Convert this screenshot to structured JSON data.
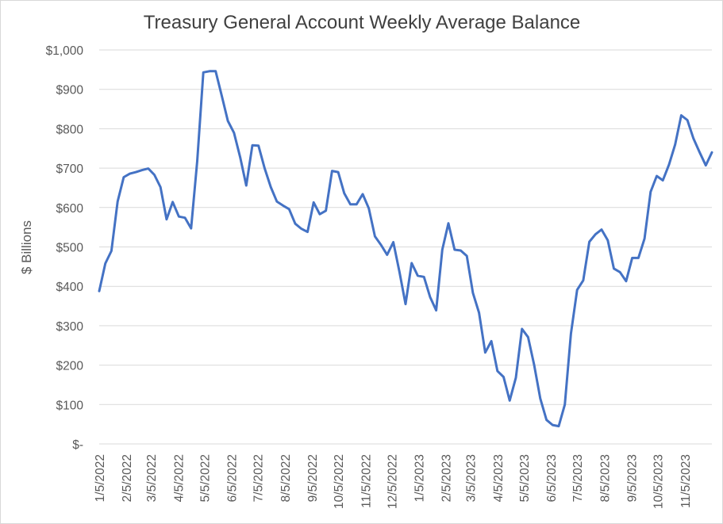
{
  "chart_data": {
    "type": "line",
    "title": "Treasury General Account Weekly Average Balance",
    "ylabel": "$ Billions",
    "xlabel": "",
    "ylim": [
      0,
      1000
    ],
    "grid": true,
    "ytick_labels": [
      "$-",
      "$100",
      "$200",
      "$300",
      "$400",
      "$500",
      "$600",
      "$700",
      "$800",
      "$900",
      "$1,000"
    ],
    "xtick_labels": [
      "1/5/2022",
      "2/5/2022",
      "3/5/2022",
      "4/5/2022",
      "5/5/2022",
      "6/5/2022",
      "7/5/2022",
      "8/5/2022",
      "9/5/2022",
      "10/5/2022",
      "11/5/2022",
      "12/5/2022",
      "1/5/2023",
      "2/5/2023",
      "3/5/2023",
      "4/5/2023",
      "5/5/2023",
      "6/5/2023",
      "7/5/2023",
      "8/5/2023",
      "9/5/2023",
      "10/5/2023",
      "11/5/2023"
    ],
    "x_start": "2022-01-05",
    "x_end": "2023-12-06",
    "x": [
      "2022-01-05",
      "2022-01-12",
      "2022-01-19",
      "2022-01-26",
      "2022-02-02",
      "2022-02-09",
      "2022-02-16",
      "2022-02-23",
      "2022-03-02",
      "2022-03-09",
      "2022-03-16",
      "2022-03-23",
      "2022-03-30",
      "2022-04-06",
      "2022-04-13",
      "2022-04-20",
      "2022-04-27",
      "2022-05-04",
      "2022-05-11",
      "2022-05-18",
      "2022-05-25",
      "2022-06-01",
      "2022-06-08",
      "2022-06-15",
      "2022-06-22",
      "2022-06-29",
      "2022-07-06",
      "2022-07-13",
      "2022-07-20",
      "2022-07-27",
      "2022-08-03",
      "2022-08-10",
      "2022-08-17",
      "2022-08-24",
      "2022-08-31",
      "2022-09-07",
      "2022-09-14",
      "2022-09-21",
      "2022-09-28",
      "2022-10-05",
      "2022-10-12",
      "2022-10-19",
      "2022-10-26",
      "2022-11-02",
      "2022-11-09",
      "2022-11-16",
      "2022-11-23",
      "2022-11-30",
      "2022-12-07",
      "2022-12-14",
      "2022-12-21",
      "2022-12-28",
      "2023-01-04",
      "2023-01-11",
      "2023-01-18",
      "2023-01-25",
      "2023-02-01",
      "2023-02-08",
      "2023-02-15",
      "2023-02-22",
      "2023-03-01",
      "2023-03-08",
      "2023-03-15",
      "2023-03-22",
      "2023-03-29",
      "2023-04-05",
      "2023-04-12",
      "2023-04-19",
      "2023-04-26",
      "2023-05-03",
      "2023-05-10",
      "2023-05-17",
      "2023-05-24",
      "2023-05-31",
      "2023-06-07",
      "2023-06-14",
      "2023-06-21",
      "2023-06-28",
      "2023-07-05",
      "2023-07-12",
      "2023-07-19",
      "2023-07-26",
      "2023-08-02",
      "2023-08-09",
      "2023-08-16",
      "2023-08-23",
      "2023-08-30",
      "2023-09-06",
      "2023-09-13",
      "2023-09-20",
      "2023-09-27",
      "2023-10-04",
      "2023-10-11",
      "2023-10-18",
      "2023-10-25",
      "2023-11-01",
      "2023-11-08",
      "2023-11-15",
      "2023-11-22",
      "2023-11-29",
      "2023-12-06"
    ],
    "series": [
      {
        "color": "#4472c4",
        "values": [
          388,
          458,
          490,
          615,
          677,
          686,
          690,
          695,
          699,
          683,
          652,
          570,
          614,
          577,
          574,
          547,
          718,
          943,
          946,
          946,
          884,
          820,
          790,
          728,
          656,
          758,
          757,
          700,
          652,
          615,
          605,
          596,
          559,
          546,
          538,
          613,
          583,
          592,
          693,
          690,
          636,
          608,
          608,
          634,
          598,
          527,
          505,
          480,
          512,
          437,
          355,
          459,
          427,
          424,
          373,
          339,
          493,
          560,
          493,
          491,
          477,
          383,
          333,
          232,
          261,
          185,
          170,
          110,
          168,
          292,
          271,
          200,
          115,
          61,
          48,
          45,
          100,
          280,
          391,
          415,
          513,
          532,
          544,
          517,
          445,
          436,
          413,
          472,
          472,
          521,
          640,
          680,
          669,
          709,
          760,
          834,
          822,
          775,
          740,
          707,
          740
        ]
      }
    ]
  }
}
